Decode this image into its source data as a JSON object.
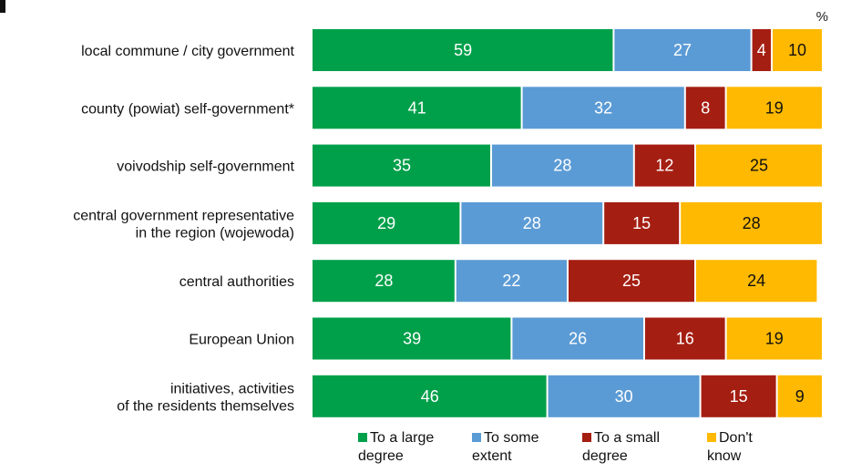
{
  "chart_data": {
    "type": "bar",
    "orientation": "horizontal",
    "stacked": true,
    "unit": "%",
    "xlim": [
      0,
      100
    ],
    "grid": false,
    "legend_position": "bottom",
    "categories": [
      [
        "local commune / city government"
      ],
      [
        "county (powiat) self-government*"
      ],
      [
        "voivodship self-government"
      ],
      [
        "central government  representative",
        "in the region (wojewoda)"
      ],
      [
        "central authorities"
      ],
      [
        "European Union"
      ],
      [
        "initiatives, activities",
        "of the residents themselves"
      ]
    ],
    "series": [
      {
        "name": [
          "To a large",
          "degree"
        ],
        "color": "#00A04A",
        "values": [
          59,
          41,
          35,
          29,
          28,
          39,
          46
        ]
      },
      {
        "name": [
          "To some",
          "extent"
        ],
        "color": "#5B9BD5",
        "values": [
          27,
          32,
          28,
          28,
          22,
          26,
          30
        ]
      },
      {
        "name": [
          "To a  small",
          "degree"
        ],
        "color": "#A51E12",
        "values": [
          4,
          8,
          12,
          15,
          25,
          16,
          15
        ]
      },
      {
        "name": [
          "Don't",
          "know"
        ],
        "color": "#FFB900",
        "values": [
          10,
          19,
          25,
          28,
          24,
          19,
          9
        ]
      }
    ]
  }
}
